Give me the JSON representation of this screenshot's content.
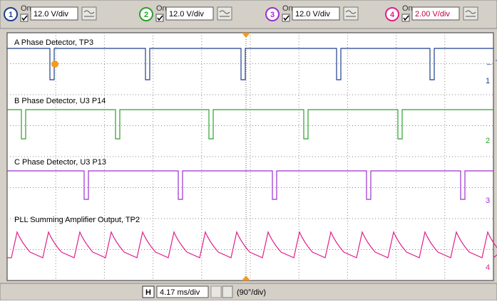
{
  "channels": [
    {
      "number": "1",
      "on": "On",
      "scale": "12.0 V/div",
      "color": "#1f3f8a"
    },
    {
      "number": "2",
      "on": "On",
      "scale": "12.0 V/div",
      "color": "#2ca02c"
    },
    {
      "number": "3",
      "on": "On",
      "scale": "12.0 V/div",
      "color": "#9b30d0"
    },
    {
      "number": "4",
      "on": "On",
      "scale": "2.00 V/div",
      "color": "#e0208a"
    }
  ],
  "traces": [
    "A Phase Detector,  TP3",
    "B Phase Detector, U3 P14",
    "C Phase Detector, U3 P13",
    "PLL Summing Amplifier Output, TP2"
  ],
  "markers": [
    "← T",
    "1",
    "2",
    "3",
    "4"
  ],
  "timebase": {
    "key": "H",
    "scale": "4.17 ms/div",
    "phase": "(90°/div)"
  }
}
